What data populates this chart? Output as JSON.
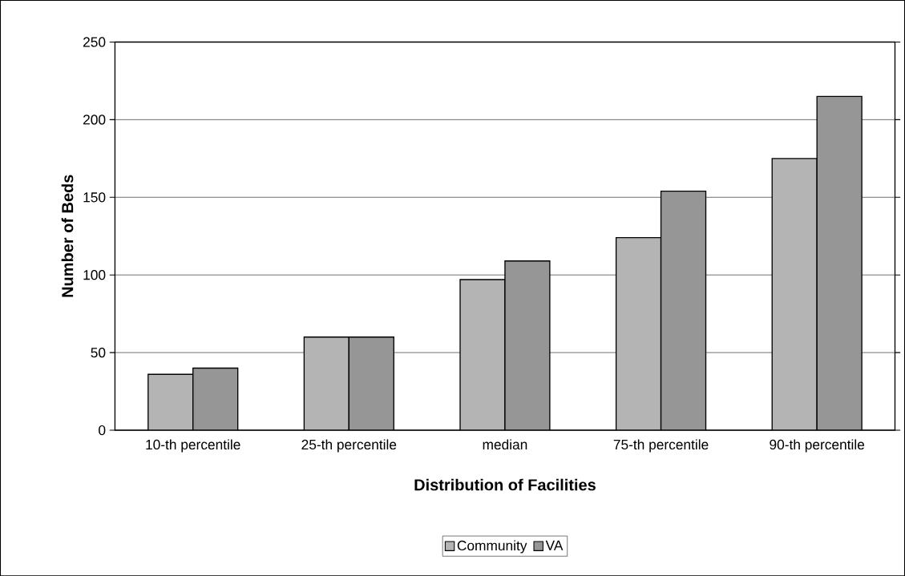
{
  "chart_data": {
    "type": "bar",
    "xlabel": "Distribution of Facilities",
    "ylabel": "Number of Beds",
    "categories": [
      "10-th percentile",
      "25-th percentile",
      "median",
      "75-th percentile",
      "90-th percentile"
    ],
    "series": [
      {
        "name": "Community",
        "color": "#b4b4b4",
        "values": [
          36,
          60,
          97,
          124,
          175
        ]
      },
      {
        "name": "VA",
        "color": "#969696",
        "values": [
          40,
          60,
          109,
          154,
          215
        ]
      }
    ],
    "ylim": [
      0,
      250
    ],
    "yticks": [
      0,
      50,
      100,
      150,
      200,
      250
    ],
    "grid": "y",
    "legend": "bottom"
  }
}
